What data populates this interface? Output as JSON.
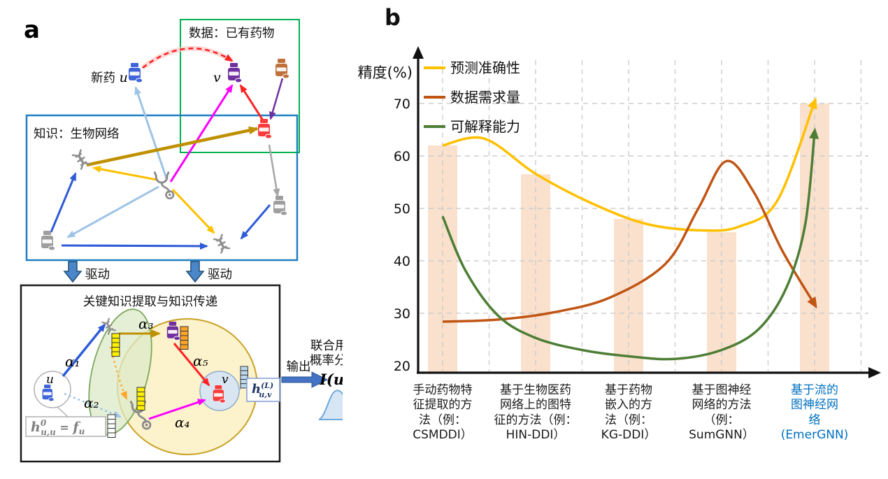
{
  "panel_a": {
    "label": "a",
    "data_box_title": "数据：已有药物",
    "knowledge_box_title": "知识：生物网络",
    "new_drug_prefix": "新药 ",
    "u_symbol": "u",
    "v_symbol": "v",
    "drive_left": "驱动",
    "drive_right": "驱动",
    "extract_box_title": "关键知识提取与知识传递",
    "alphas": {
      "a1": "α₁",
      "a2": "α₂",
      "a3": "α₃",
      "a4": "α₄",
      "a5": "α₅"
    },
    "node_u": "u",
    "node_v": "v",
    "h_init": {
      "h": "h",
      "sup": "0",
      "sub": "u,u",
      "eq": " = ",
      "f": "f",
      "fsub": "u"
    },
    "h_out": {
      "h": "h",
      "sup": "(L)",
      "sub": "u,v"
    },
    "output_label": "输出",
    "result_line1": "联合用药",
    "result_line2": "概率分布",
    "result_formula": "I(u, v)",
    "icons": {
      "pill_bottle": "pill-bottle-icon",
      "dna": "dna-helix-icon",
      "stethoscope": "stethoscope-icon",
      "drive_arrow": "drive-down-block-arrow",
      "output_arrow": "output-right-block-arrow",
      "distribution": "probability-distribution-curve"
    }
  },
  "panel_b": {
    "label": "b"
  },
  "chart_data": {
    "type": "line+bar",
    "title": "",
    "ylabel": "精度(%)",
    "xlabel": "",
    "yticks": [
      20,
      30,
      40,
      50,
      60,
      70
    ],
    "ylim": [
      20,
      75
    ],
    "grid": "dashed",
    "legend_position": "top-left",
    "categories": [
      {
        "text": "手动药物特\n征提取的方\n法（例：\nCSMDDI）",
        "color": "#1a1a1a"
      },
      {
        "text": "基于生物医药\n网络上的图特\n征的方法（例：\nHIN-DDI）",
        "color": "#1a1a1a"
      },
      {
        "text": "基于药物\n嵌入的方\n法（例：\nKG-DDI）",
        "color": "#1a1a1a"
      },
      {
        "text": "基于图神经\n网络的方法\n（例：\nSumGNN）",
        "color": "#1a1a1a"
      },
      {
        "text": "基于流的\n图神经网\n络\n(EmerGNN)",
        "color": "#0070C0"
      }
    ],
    "bars": {
      "name": "方法精度柱",
      "values": [
        62,
        56.5,
        48,
        45.5,
        70
      ],
      "color": "#FAE1CE"
    },
    "series": [
      {
        "name": "预测准确性",
        "color": "#FFC000",
        "end_arrow": "up",
        "points": [
          [
            0,
            62
          ],
          [
            0.45,
            63.3
          ],
          [
            1,
            56.6
          ],
          [
            1.6,
            51
          ],
          [
            2.2,
            47
          ],
          [
            2.8,
            45.8
          ],
          [
            3.2,
            46.6
          ],
          [
            3.6,
            51.5
          ],
          [
            4,
            70.3
          ]
        ]
      },
      {
        "name": "数据需求量",
        "color": "#C05514",
        "end_arrow": "down",
        "points": [
          [
            0,
            28.4
          ],
          [
            0.6,
            28.8
          ],
          [
            1.2,
            30.2
          ],
          [
            1.8,
            33
          ],
          [
            2.4,
            39.5
          ],
          [
            2.75,
            50
          ],
          [
            3.05,
            59
          ],
          [
            3.35,
            53
          ],
          [
            3.65,
            42
          ],
          [
            4,
            31.7
          ]
        ]
      },
      {
        "name": "可解释能力",
        "color": "#4E7E35",
        "end_arrow": "up",
        "points": [
          [
            0,
            48.5
          ],
          [
            0.25,
            38
          ],
          [
            0.6,
            29.5
          ],
          [
            1,
            25.3
          ],
          [
            1.5,
            23
          ],
          [
            2,
            21.8
          ],
          [
            2.5,
            21.3
          ],
          [
            3,
            23
          ],
          [
            3.4,
            27
          ],
          [
            3.7,
            35
          ],
          [
            3.9,
            47
          ],
          [
            4,
            64.5
          ]
        ]
      }
    ]
  }
}
